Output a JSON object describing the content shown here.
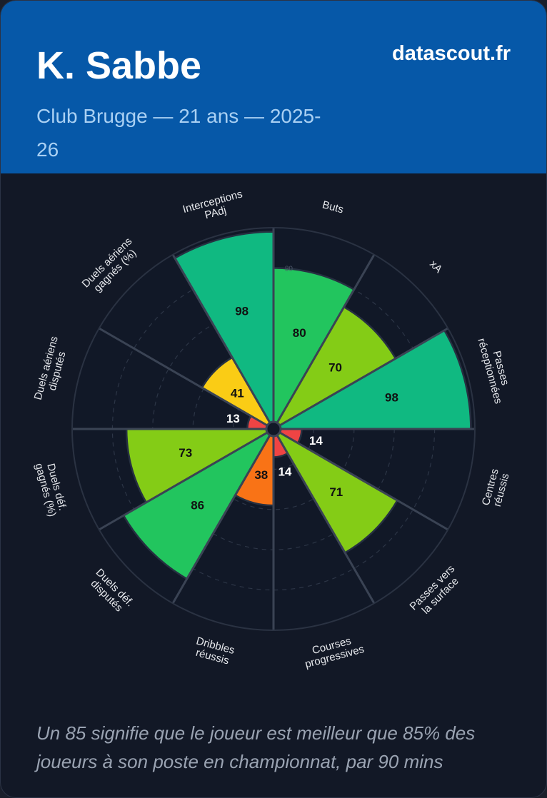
{
  "header": {
    "player_name": "K. Sabbe",
    "subtitle": "Club Brugge — 21 ans — 2025-26",
    "brand": "datascout.fr"
  },
  "footnote": "Un 85 signifie que le joueur est meilleur que 85% des joueurs à son poste en championnat, par 90 mins",
  "colors": {
    "header_bg": "#0658a8",
    "card_bg": "#121826",
    "grid": "#3a4354",
    "tier_low": "#ef4444",
    "tier_mid_low": "#f97316",
    "tier_mid": "#facc15",
    "tier_good": "#84cc16",
    "tier_very_good": "#22c55e",
    "tier_elite": "#10b981"
  },
  "chart_data": {
    "type": "radial-bar",
    "title": "K. Sabbe",
    "scale": [
      0,
      100
    ],
    "grid_rings": [
      20,
      40,
      60,
      80
    ],
    "axis_label_visible": "80",
    "metrics": [
      {
        "label": "Buts",
        "value": 80
      },
      {
        "label": "xA",
        "value": 70
      },
      {
        "label": "Passes réceptionnées",
        "value": 98
      },
      {
        "label": "Centres réussis",
        "value": 14
      },
      {
        "label": "Passes vers la surface",
        "value": 71
      },
      {
        "label": "Courses progressives",
        "value": 14
      },
      {
        "label": "Dribbles réussis",
        "value": 38
      },
      {
        "label": "Duels déf. disputés",
        "value": 86
      },
      {
        "label": "Duels déf. gagnés (%)",
        "value": 73
      },
      {
        "label": "Duels aériens disputés",
        "value": 13
      },
      {
        "label": "Duels aériens gagnés (%)",
        "value": 41
      },
      {
        "label": "Interceptions PAdj",
        "value": 98
      }
    ]
  }
}
